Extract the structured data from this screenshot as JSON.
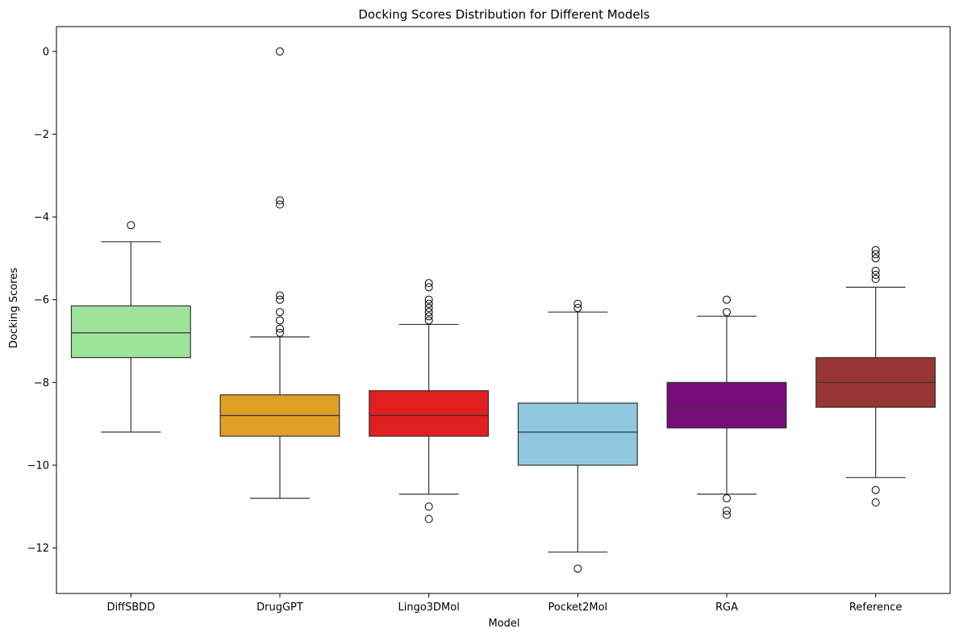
{
  "chart_data": {
    "type": "box",
    "title": "Docking Scores Distribution for Different Models",
    "xlabel": "Model",
    "ylabel": "Docking Scores",
    "ylim": [
      -13.1,
      0.6
    ],
    "yticks": [
      0,
      -2,
      -4,
      -6,
      -8,
      -10,
      -12
    ],
    "grid": false,
    "categories": [
      "DiffSBDD",
      "DrugGPT",
      "Lingo3DMol",
      "Pocket2Mol",
      "RGA",
      "Reference"
    ],
    "colors": [
      "#9de39a",
      "#e09f25",
      "#e01f20",
      "#92c8df",
      "#760d78",
      "#973634"
    ],
    "boxes": [
      {
        "name": "DiffSBDD",
        "whisker_low": -9.2,
        "q1": -7.4,
        "median": -6.8,
        "q3": -6.15,
        "whisker_high": -4.6,
        "outliers": [
          -4.2
        ]
      },
      {
        "name": "DrugGPT",
        "whisker_low": -10.8,
        "q1": -9.3,
        "median": -8.8,
        "q3": -8.3,
        "whisker_high": -6.9,
        "outliers": [
          0.0,
          -3.6,
          -3.7,
          -5.9,
          -6.0,
          -6.3,
          -6.5,
          -6.7,
          -6.8
        ]
      },
      {
        "name": "Lingo3DMol",
        "whisker_low": -10.7,
        "q1": -9.3,
        "median": -8.8,
        "q3": -8.2,
        "whisker_high": -6.6,
        "outliers": [
          -5.6,
          -5.7,
          -6.0,
          -6.1,
          -6.2,
          -6.3,
          -6.4,
          -6.5,
          -11.0,
          -11.3
        ]
      },
      {
        "name": "Pocket2Mol",
        "whisker_low": -12.1,
        "q1": -10.0,
        "median": -9.2,
        "q3": -8.5,
        "whisker_high": -6.3,
        "outliers": [
          -6.1,
          -6.2,
          -12.5
        ]
      },
      {
        "name": "RGA",
        "whisker_low": -10.7,
        "q1": -9.1,
        "median": -8.6,
        "q3": -8.0,
        "whisker_high": -6.4,
        "outliers": [
          -6.0,
          -6.3,
          -10.8,
          -11.1,
          -11.2
        ]
      },
      {
        "name": "Reference",
        "whisker_low": -10.3,
        "q1": -8.6,
        "median": -8.0,
        "q3": -7.4,
        "whisker_high": -5.7,
        "outliers": [
          -4.8,
          -4.9,
          -5.0,
          -5.3,
          -5.4,
          -5.5,
          -10.6,
          -10.9
        ]
      }
    ]
  }
}
